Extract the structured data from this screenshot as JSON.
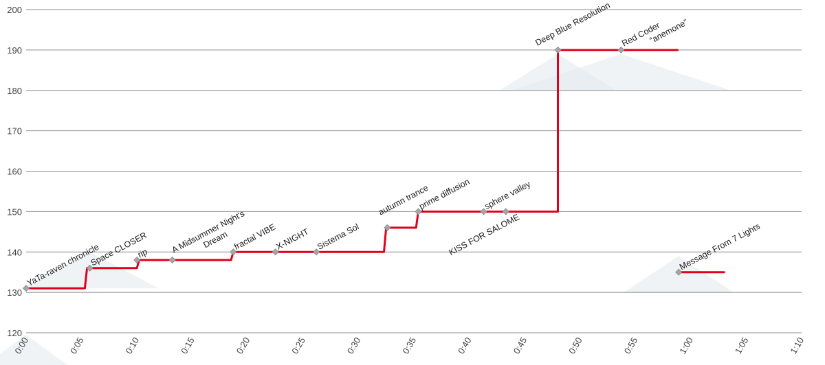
{
  "chart_data": {
    "type": "line",
    "title": "",
    "xlabel": "",
    "ylabel": "",
    "xlim": [
      0,
      70
    ],
    "ylim": [
      120,
      200
    ],
    "x_ticks": [
      "0:00",
      "0:05",
      "0:10",
      "0:15",
      "0:20",
      "0:25",
      "0:30",
      "0:35",
      "0:40",
      "0:45",
      "0:50",
      "0:55",
      "1:00",
      "1:05",
      "1:10"
    ],
    "y_ticks": [
      "120",
      "130",
      "140",
      "150",
      "160",
      "170",
      "180",
      "190",
      "200"
    ],
    "grid": true,
    "colors": {
      "line": "#e0001b",
      "marker": "#a6a6a6",
      "grid": "#8c8c8c",
      "shadow": "#e4eaee"
    },
    "series": [
      {
        "steps": [
          {
            "x": 0.0,
            "y": 131
          },
          {
            "x": 5.3,
            "y": 131
          },
          {
            "x": 5.5,
            "y": 136
          },
          {
            "x": 10.0,
            "y": 136
          },
          {
            "x": 10.2,
            "y": 138
          },
          {
            "x": 18.5,
            "y": 138
          },
          {
            "x": 18.7,
            "y": 140
          },
          {
            "x": 32.3,
            "y": 140
          },
          {
            "x": 32.5,
            "y": 146
          },
          {
            "x": 35.2,
            "y": 146
          },
          {
            "x": 35.4,
            "y": 150
          },
          {
            "x": 48.0,
            "y": 150
          },
          {
            "x": 48.0,
            "y": 190
          },
          {
            "x": 58.8,
            "y": 190
          }
        ],
        "points": [
          {
            "label": "YaTa-raven chronicle",
            "x": 0.0,
            "y": 131
          },
          {
            "label": "Space CLOSER",
            "x": 5.75,
            "y": 136
          },
          {
            "label": "rip",
            "x": 10.0,
            "y": 138
          },
          {
            "label": "A Midsummer Night's Dream",
            "x": 13.2,
            "y": 138
          },
          {
            "label": "fractal VIBE",
            "x": 18.7,
            "y": 140
          },
          {
            "label": "X-NIGHT",
            "x": 22.5,
            "y": 140
          },
          {
            "label": "Sistema Sol",
            "x": 26.2,
            "y": 140
          },
          {
            "label": "autumn trance",
            "x": 32.6,
            "y": 146
          },
          {
            "label": "prime diffusion",
            "x": 35.4,
            "y": 150
          },
          {
            "label": "sphere valley",
            "x": 41.3,
            "y": 150
          },
          {
            "label": "KISS FOR SALOME",
            "x": 43.3,
            "y": 150
          },
          {
            "label": "Deep Blue Resolution",
            "x": 48.0,
            "y": 190
          },
          {
            "label": "Red Coder “anemone”",
            "x": 53.7,
            "y": 190
          }
        ]
      },
      {
        "steps": [
          {
            "x": 58.9,
            "y": 135
          },
          {
            "x": 63.0,
            "y": 135
          }
        ],
        "points": [
          {
            "label": "Message From 7 Lights",
            "x": 58.9,
            "y": 135
          }
        ]
      }
    ]
  }
}
